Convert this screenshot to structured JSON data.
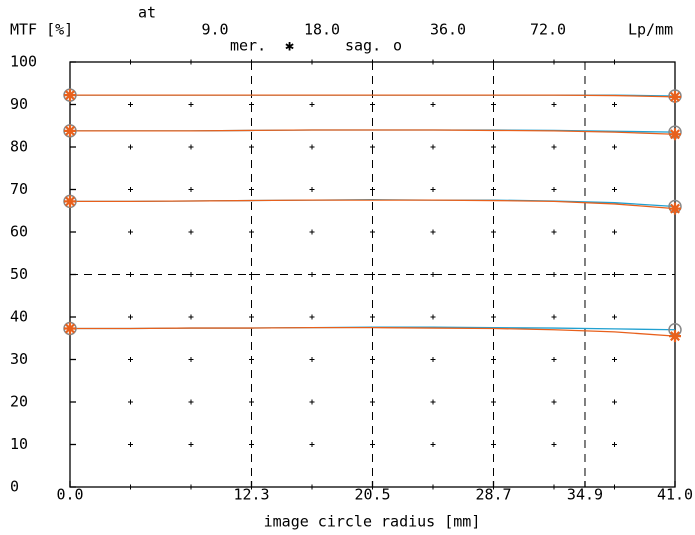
{
  "chart_data": {
    "type": "line",
    "y_label": "MTF [%]",
    "x_label": "image circle radius [mm]",
    "frequency_prefix": "at",
    "frequency_unit": "Lp/mm",
    "legend": {
      "mer": {
        "label": "mer.",
        "symbol": "✱"
      },
      "sag": {
        "label": "sag.",
        "symbol": "o"
      }
    },
    "colors": {
      "mer": "#e8601c",
      "sag": "#20a0d0"
    },
    "x": [
      0,
      4.1,
      8.2,
      12.3,
      16.4,
      20.5,
      24.6,
      28.7,
      32.8,
      36.9,
      41.0
    ],
    "frequencies": [
      {
        "label": "9.0",
        "mer": [
          92.2,
          92.2,
          92.2,
          92.2,
          92.2,
          92.2,
          92.2,
          92.2,
          92.2,
          92.1,
          91.8
        ],
        "sag": [
          92.2,
          92.2,
          92.2,
          92.2,
          92.2,
          92.2,
          92.2,
          92.2,
          92.2,
          92.2,
          92.0
        ]
      },
      {
        "label": "18.0",
        "mer": [
          83.8,
          83.8,
          83.8,
          83.9,
          84.0,
          84.0,
          84.0,
          83.9,
          83.8,
          83.5,
          83.0
        ],
        "sag": [
          83.8,
          83.8,
          83.8,
          83.9,
          84.0,
          84.0,
          84.0,
          84.0,
          83.9,
          83.7,
          83.5
        ]
      },
      {
        "label": "36.0",
        "mer": [
          67.2,
          67.2,
          67.3,
          67.4,
          67.5,
          67.5,
          67.5,
          67.4,
          67.2,
          66.6,
          65.5
        ],
        "sag": [
          67.2,
          67.2,
          67.3,
          67.4,
          67.5,
          67.6,
          67.5,
          67.5,
          67.3,
          66.9,
          66.0
        ]
      },
      {
        "label": "72.0",
        "mer": [
          37.3,
          37.3,
          37.4,
          37.4,
          37.5,
          37.5,
          37.4,
          37.3,
          37.0,
          36.5,
          35.5
        ],
        "sag": [
          37.3,
          37.3,
          37.4,
          37.4,
          37.5,
          37.6,
          37.6,
          37.5,
          37.4,
          37.2,
          37.0
        ]
      }
    ],
    "xlim": [
      0,
      41.0
    ],
    "ylim": [
      0,
      100
    ],
    "xticks": [
      {
        "value": 0,
        "label": "0.0"
      },
      12.3,
      20.5,
      28.7,
      34.9,
      {
        "value": 41.0,
        "label": "41.0"
      }
    ],
    "yticks": [
      0,
      10,
      20,
      30,
      40,
      50,
      60,
      70,
      80,
      90,
      100
    ],
    "dashed_x": [
      12.3,
      20.5,
      28.7,
      34.9
    ],
    "dashed_y": [
      50
    ]
  }
}
